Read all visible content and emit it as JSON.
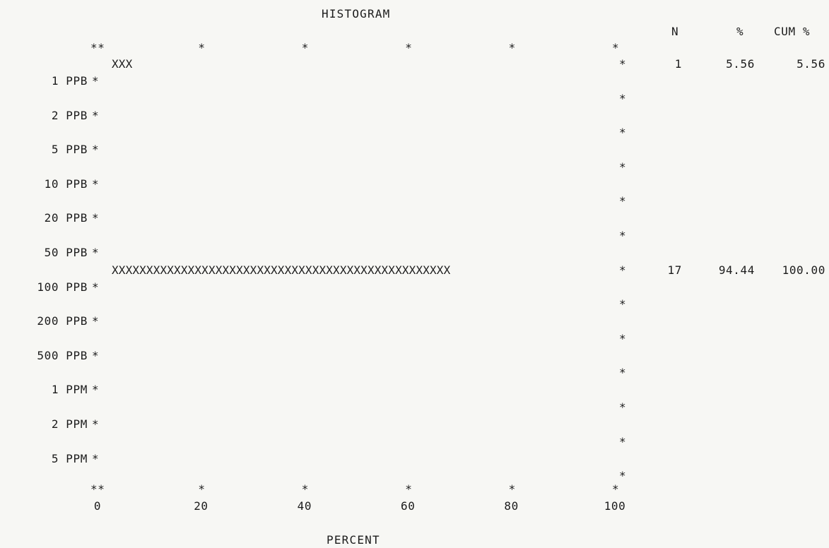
{
  "chart_data": {
    "type": "bar",
    "orientation": "horizontal",
    "title": "HISTOGRAM",
    "xlabel": "PERCENT",
    "ylabel": "",
    "xlim": [
      0,
      100
    ],
    "xticks": [
      "0",
      "20",
      "40",
      "60",
      "80",
      "100"
    ],
    "categories": [
      "1 PPB",
      "2 PPB",
      "5 PPB",
      "10 PPB",
      "20 PPB",
      "50 PPB",
      "100 PPB",
      "200 PPB",
      "500 PPB",
      "1 PPM",
      "2 PPM",
      "5 PPM"
    ],
    "bars": [
      {
        "between": [
          "0",
          "1 PPB"
        ],
        "value": 5.56,
        "marks": "XXX"
      },
      {
        "between": [
          "50 PPB",
          "100 PPB"
        ],
        "value": 94.44,
        "marks": "XXXXXXXXXXXXXXXXXXXXXXXXXXXXXXXXXXXXXXXXXXXXXXXXX"
      }
    ],
    "table": {
      "headers": [
        "N",
        "%",
        "CUM %"
      ],
      "rows": [
        {
          "n": "1",
          "pct": "5.56",
          "cum": "5.56"
        },
        {
          "n": "17",
          "pct": "94.44",
          "cum": "100.00"
        }
      ]
    },
    "grid": false
  },
  "frame": {
    "corner_mark": "**",
    "star_mark": "*"
  }
}
